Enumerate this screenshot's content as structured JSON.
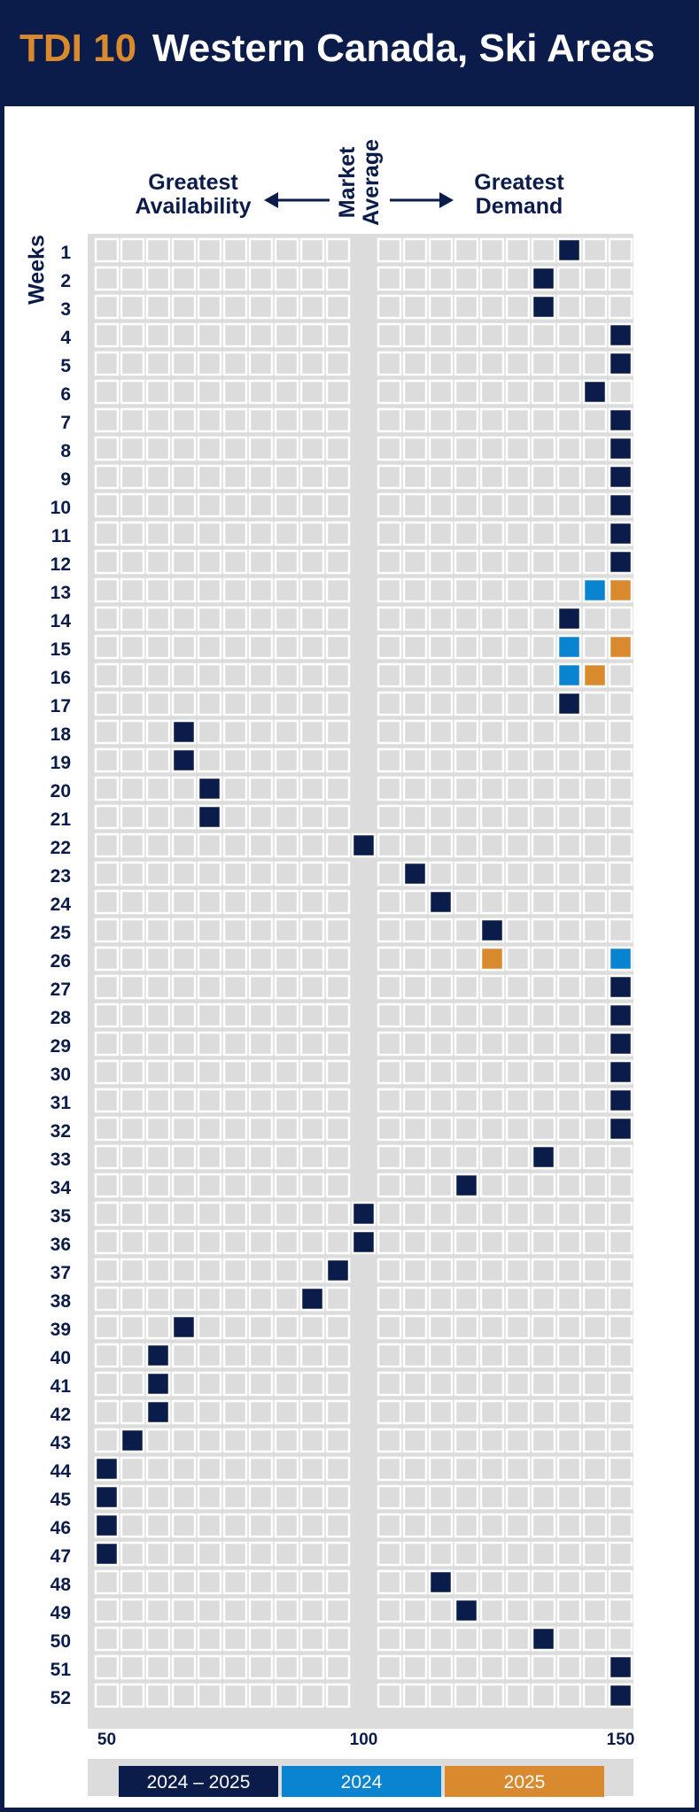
{
  "header": {
    "tag": "TDI 10",
    "title": "Western Canada, Ski Areas"
  },
  "labels": {
    "left": "Greatest Availability",
    "middle": "Market Average",
    "right": "Greatest Demand",
    "weeks": "Weeks"
  },
  "colors": {
    "background": "#0b1c4a",
    "cell": "#dcdcdc",
    "mark_2024_2025": "#0b1c4a",
    "mark_2024": "#0a84d0",
    "mark_2025": "#d98a2e"
  },
  "chart_data": {
    "type": "heatmap",
    "x_ticks": [
      50,
      100,
      150
    ],
    "xlim": [
      50,
      150
    ],
    "y_label": "Weeks",
    "legend": [
      {
        "name": "2024 – 2025",
        "color": "#0b1c4a"
      },
      {
        "name": "2024",
        "color": "#0a84d0"
      },
      {
        "name": "2025",
        "color": "#d98a2e"
      }
    ],
    "series": [
      {
        "name": "2024 – 2025",
        "points": [
          {
            "week": 1,
            "value": 140
          },
          {
            "week": 2,
            "value": 135
          },
          {
            "week": 3,
            "value": 135
          },
          {
            "week": 4,
            "value": 150
          },
          {
            "week": 5,
            "value": 150
          },
          {
            "week": 6,
            "value": 145
          },
          {
            "week": 7,
            "value": 150
          },
          {
            "week": 8,
            "value": 150
          },
          {
            "week": 9,
            "value": 150
          },
          {
            "week": 10,
            "value": 150
          },
          {
            "week": 11,
            "value": 150
          },
          {
            "week": 12,
            "value": 150
          },
          {
            "week": 14,
            "value": 140
          },
          {
            "week": 17,
            "value": 140
          },
          {
            "week": 18,
            "value": 65
          },
          {
            "week": 19,
            "value": 65
          },
          {
            "week": 20,
            "value": 70
          },
          {
            "week": 21,
            "value": 70
          },
          {
            "week": 22,
            "value": 100
          },
          {
            "week": 23,
            "value": 110
          },
          {
            "week": 24,
            "value": 115
          },
          {
            "week": 25,
            "value": 125
          },
          {
            "week": 27,
            "value": 150
          },
          {
            "week": 28,
            "value": 150
          },
          {
            "week": 29,
            "value": 150
          },
          {
            "week": 30,
            "value": 150
          },
          {
            "week": 31,
            "value": 150
          },
          {
            "week": 32,
            "value": 150
          },
          {
            "week": 33,
            "value": 135
          },
          {
            "week": 34,
            "value": 120
          },
          {
            "week": 35,
            "value": 100
          },
          {
            "week": 36,
            "value": 100
          },
          {
            "week": 37,
            "value": 95
          },
          {
            "week": 38,
            "value": 90
          },
          {
            "week": 39,
            "value": 65
          },
          {
            "week": 40,
            "value": 60
          },
          {
            "week": 41,
            "value": 60
          },
          {
            "week": 42,
            "value": 60
          },
          {
            "week": 43,
            "value": 55
          },
          {
            "week": 44,
            "value": 50
          },
          {
            "week": 45,
            "value": 50
          },
          {
            "week": 46,
            "value": 50
          },
          {
            "week": 47,
            "value": 50
          },
          {
            "week": 48,
            "value": 115
          },
          {
            "week": 49,
            "value": 120
          },
          {
            "week": 50,
            "value": 135
          },
          {
            "week": 51,
            "value": 150
          },
          {
            "week": 52,
            "value": 150
          }
        ]
      },
      {
        "name": "2024",
        "points": [
          {
            "week": 13,
            "value": 145
          },
          {
            "week": 15,
            "value": 140
          },
          {
            "week": 16,
            "value": 140
          },
          {
            "week": 26,
            "value": 150
          }
        ]
      },
      {
        "name": "2025",
        "points": [
          {
            "week": 13,
            "value": 150
          },
          {
            "week": 15,
            "value": 150
          },
          {
            "week": 16,
            "value": 145
          },
          {
            "week": 26,
            "value": 125
          }
        ]
      }
    ]
  }
}
